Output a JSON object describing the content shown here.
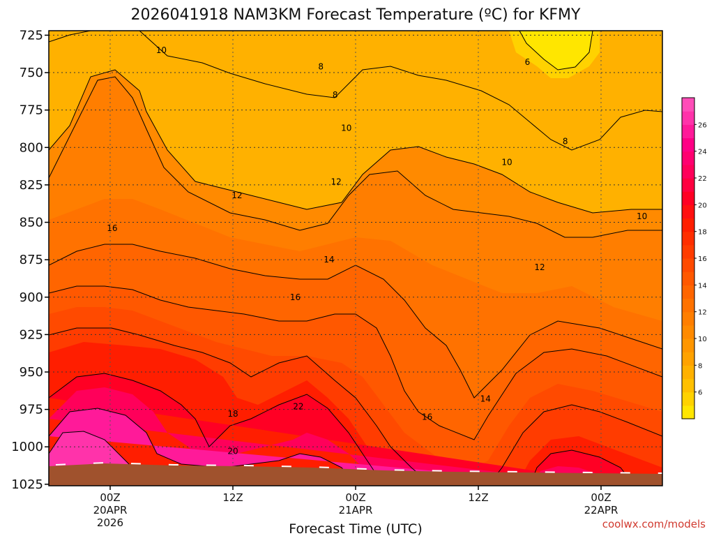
{
  "chart_data": {
    "type": "heatmap",
    "title": "2026041918 NAM3KM Forecast Temperature (ºC) for KFMY",
    "xlabel": "Forecast Time (UTC)",
    "credit": "coolwx.com/models",
    "y_ticks": [
      "725",
      "750",
      "775",
      "800",
      "825",
      "850",
      "875",
      "900",
      "925",
      "950",
      "975",
      "1000",
      "1025"
    ],
    "y_values": [
      725,
      750,
      775,
      800,
      825,
      850,
      875,
      900,
      925,
      950,
      975,
      1000,
      1025
    ],
    "ylim": [
      722,
      1026
    ],
    "xlim_hours": [
      -6,
      54
    ],
    "x_ticks": [
      {
        "hour": 0,
        "line1": "00Z",
        "line2": "20APR",
        "line3": "2026"
      },
      {
        "hour": 12,
        "line1": "12Z",
        "line2": "",
        "line3": ""
      },
      {
        "hour": 24,
        "line1": "00Z",
        "line2": "21APR",
        "line3": ""
      },
      {
        "hour": 36,
        "line1": "12Z",
        "line2": "",
        "line3": ""
      },
      {
        "hour": 48,
        "line1": "00Z",
        "line2": "22APR",
        "line3": ""
      }
    ],
    "colorbar": {
      "labels": [
        "6",
        "8",
        "10",
        "12",
        "14",
        "16",
        "18",
        "20",
        "22",
        "24",
        "26"
      ],
      "levels": [
        4,
        5,
        6,
        7,
        8,
        9,
        10,
        11,
        12,
        13,
        14,
        15,
        16,
        17,
        18,
        19,
        20,
        21,
        22,
        23,
        24,
        25,
        26,
        27,
        28
      ],
      "colors": [
        "#ffe600",
        "#ffd200",
        "#ffc000",
        "#ffb100",
        "#ffa200",
        "#ff9600",
        "#ff8a00",
        "#ff7e00",
        "#ff7200",
        "#ff6500",
        "#ff5800",
        "#ff4a00",
        "#ff3c00",
        "#ff2e00",
        "#ff1e00",
        "#ff1010",
        "#ff0024",
        "#ff0040",
        "#ff005a",
        "#ff0070",
        "#ff0085",
        "#ff1a99",
        "#ff33aa",
        "#ff4db8"
      ]
    },
    "contour_labels": [
      {
        "text": "6",
        "hour": 40.8,
        "p": 743
      },
      {
        "text": "8",
        "hour": 20.6,
        "p": 746
      },
      {
        "text": "8",
        "hour": 22.0,
        "p": 765
      },
      {
        "text": "8",
        "hour": 44.5,
        "p": 796
      },
      {
        "text": "10",
        "hour": 5.0,
        "p": 735
      },
      {
        "text": "10",
        "hour": 23.1,
        "p": 787
      },
      {
        "text": "10",
        "hour": 38.8,
        "p": 810
      },
      {
        "text": "10",
        "hour": 52.0,
        "p": 846
      },
      {
        "text": "12",
        "hour": 22.1,
        "p": 823
      },
      {
        "text": "12",
        "hour": 12.4,
        "p": 832
      },
      {
        "text": "12",
        "hour": 42.0,
        "p": 880
      },
      {
        "text": "14",
        "hour": 21.4,
        "p": 875
      },
      {
        "text": "14",
        "hour": 36.7,
        "p": 968
      },
      {
        "text": "16",
        "hour": 0.2,
        "p": 854
      },
      {
        "text": "16",
        "hour": 18.1,
        "p": 900
      },
      {
        "text": "16",
        "hour": 31.0,
        "p": 980
      },
      {
        "text": "18",
        "hour": 12.0,
        "p": 978
      },
      {
        "text": "20",
        "hour": 12.0,
        "p": 1003
      },
      {
        "text": "22",
        "hour": 18.4,
        "p": 973
      }
    ],
    "surface_level_hpa": 1013
  }
}
